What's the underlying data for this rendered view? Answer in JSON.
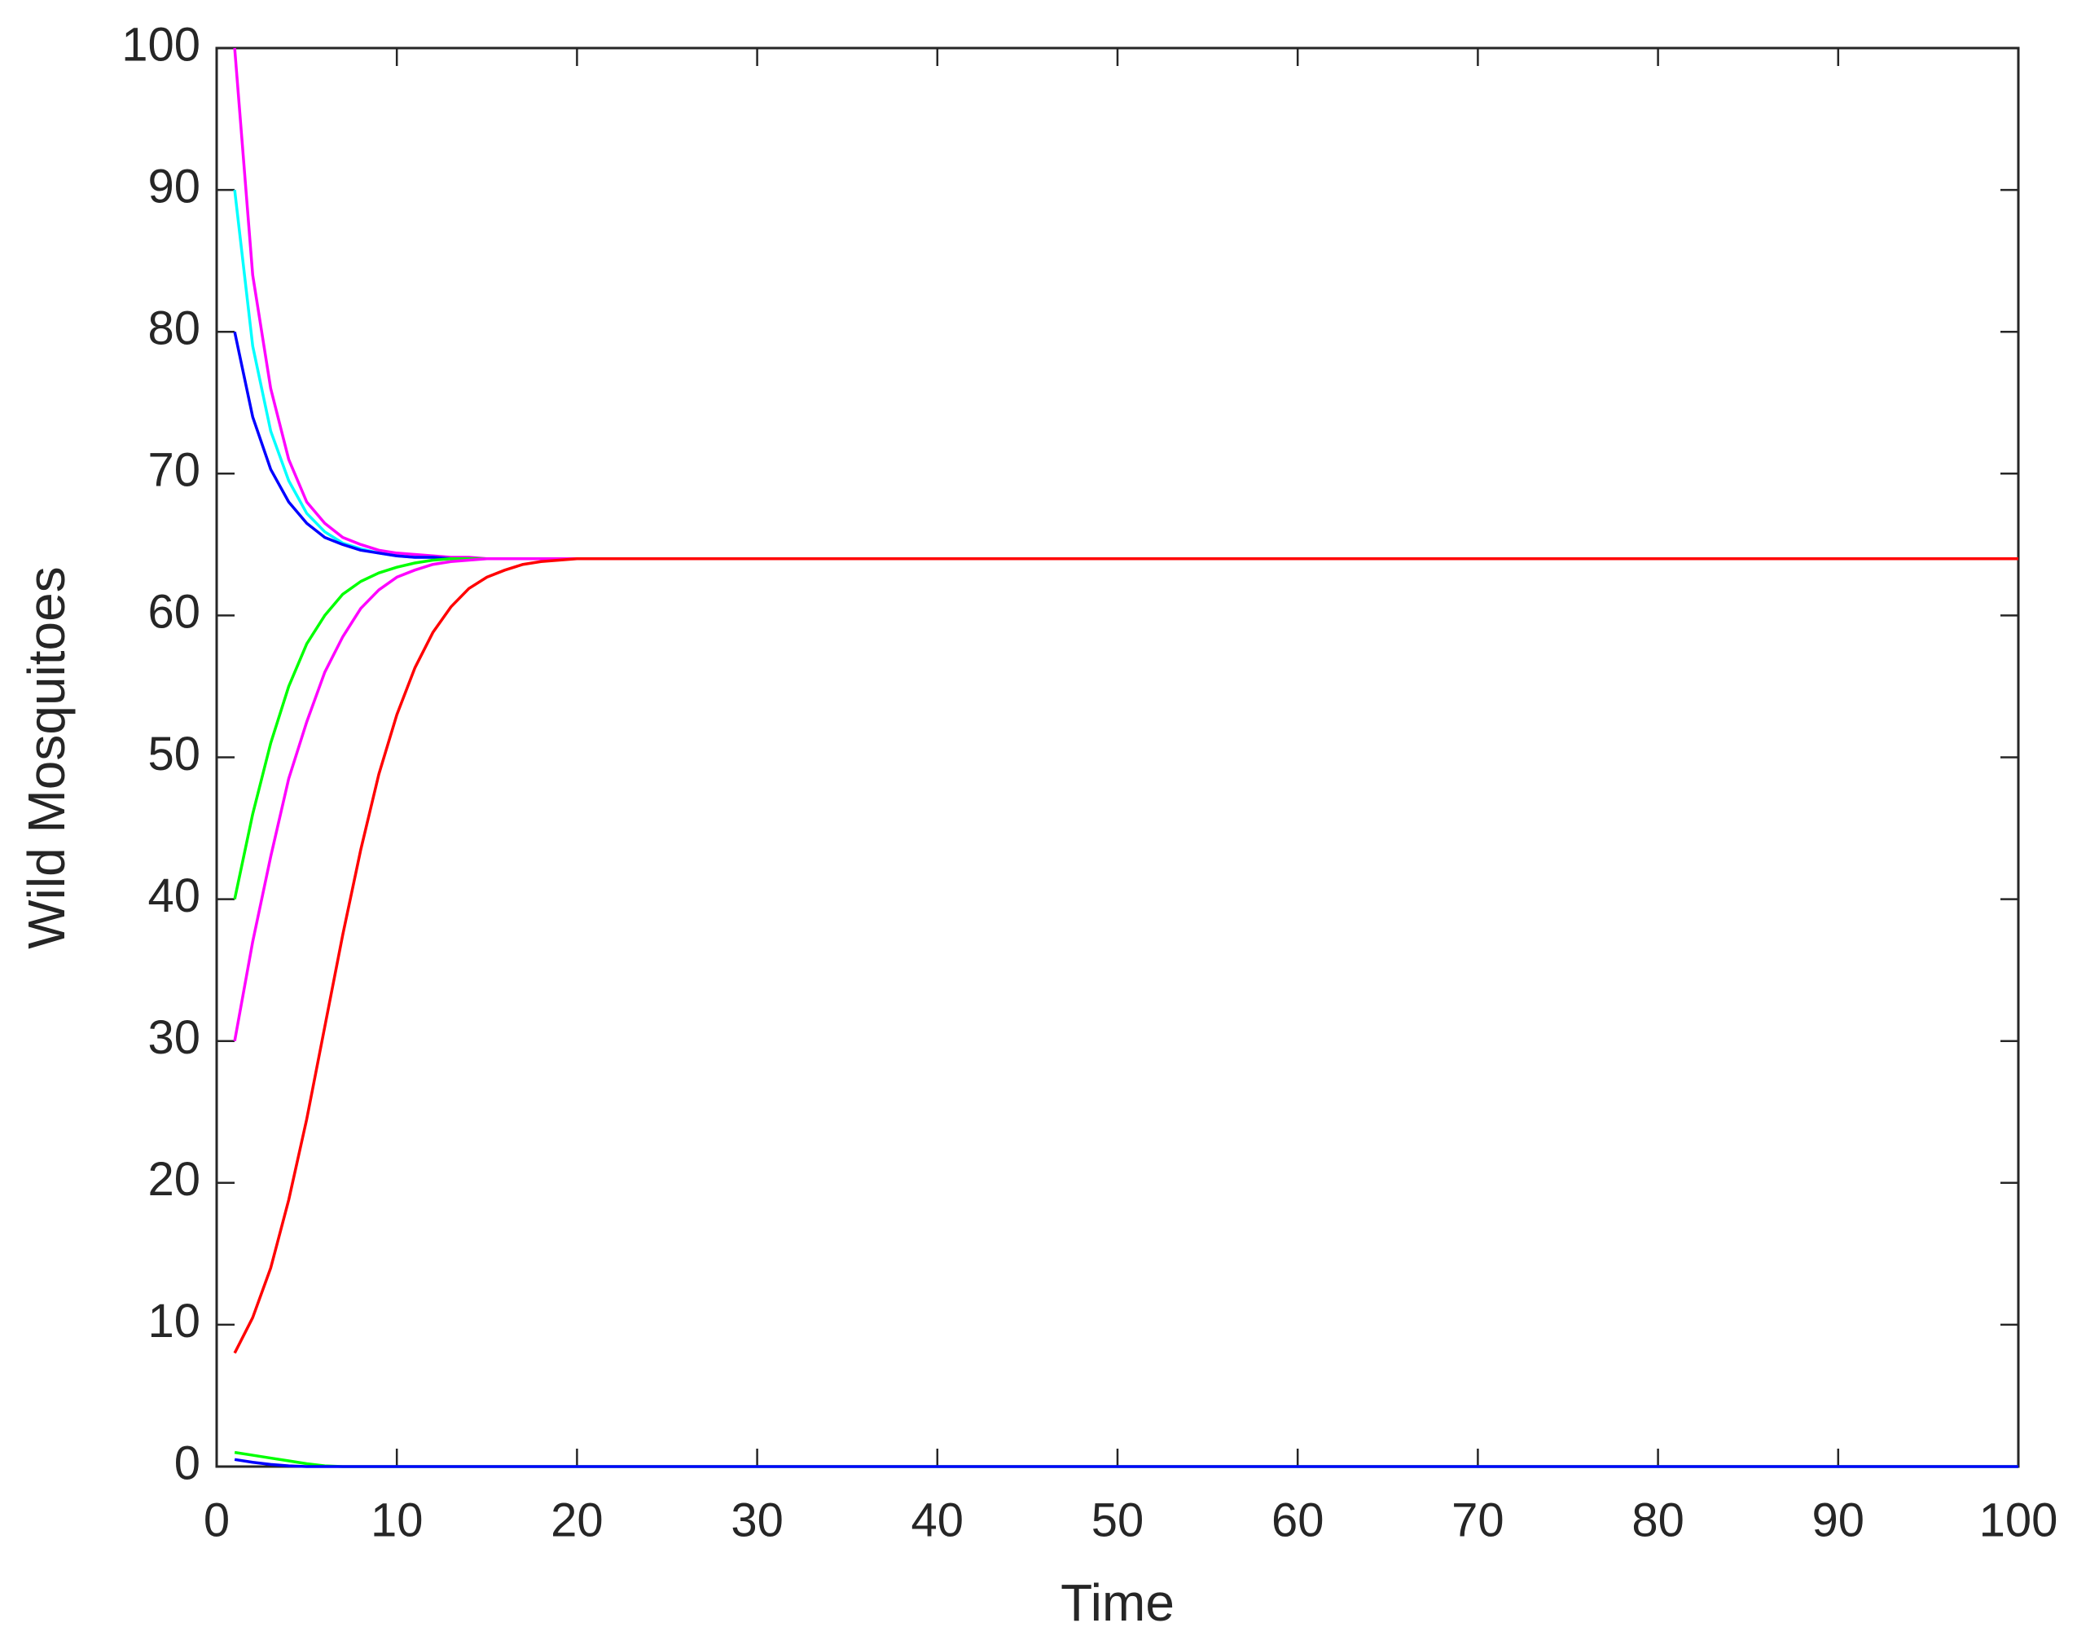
{
  "chart_data": {
    "type": "line",
    "x_label": "Time",
    "y_label": "Wild Mosquitoes",
    "x": [
      1,
      2,
      3,
      4,
      5,
      6,
      7,
      8,
      9,
      10,
      11,
      12,
      13,
      14,
      15,
      16,
      17,
      18,
      19,
      20,
      25,
      100
    ],
    "series": [
      {
        "color": "#ff00ff",
        "values": [
          100,
          84,
          76,
          71,
          68,
          66.5,
          65.5,
          65,
          64.6,
          64.4,
          64.3,
          64.2,
          64.1,
          64.1,
          64,
          64,
          64,
          64,
          64,
          64,
          64,
          64
        ]
      },
      {
        "color": "#00ffff",
        "values": [
          90,
          79,
          73,
          69.5,
          67.2,
          65.9,
          65.1,
          64.7,
          64.4,
          64.2,
          64.1,
          64.1,
          64,
          64,
          64,
          64,
          64,
          64,
          64,
          64,
          64,
          64
        ]
      },
      {
        "color": "#0000ff",
        "values": [
          80,
          74,
          70.3,
          68,
          66.5,
          65.5,
          65,
          64.6,
          64.4,
          64.2,
          64.1,
          64.1,
          64,
          64,
          64,
          64,
          64,
          64,
          64,
          64,
          64,
          64
        ]
      },
      {
        "color": "#00ff00",
        "values": [
          40,
          46,
          51,
          55,
          58,
          60,
          61.5,
          62.4,
          63,
          63.4,
          63.7,
          63.9,
          64,
          64,
          64,
          64,
          64,
          64,
          64,
          64,
          64,
          64
        ]
      },
      {
        "color": "#ff00ff",
        "values": [
          30,
          37,
          43,
          48.5,
          52.5,
          56,
          58.5,
          60.5,
          61.8,
          62.7,
          63.2,
          63.6,
          63.8,
          63.9,
          64,
          64,
          64,
          64,
          64,
          64,
          64,
          64
        ]
      },
      {
        "color": "#ff0000",
        "values": [
          8,
          10.5,
          14,
          18.8,
          24.5,
          31,
          37.5,
          43.5,
          48.8,
          53,
          56.3,
          58.8,
          60.6,
          61.9,
          62.7,
          63.2,
          63.6,
          63.8,
          63.9,
          64,
          64,
          64
        ]
      },
      {
        "color": "#00ff00",
        "values": [
          1,
          0.8,
          0.6,
          0.4,
          0.2,
          0.05,
          0,
          0,
          0,
          0,
          0,
          0,
          0,
          0,
          0,
          0,
          0,
          0,
          0,
          0,
          0,
          0
        ]
      },
      {
        "color": "#0000ff",
        "values": [
          0.5,
          0.3,
          0.15,
          0.05,
          0,
          0,
          0,
          0,
          0,
          0,
          0,
          0,
          0,
          0,
          0,
          0,
          0,
          0,
          0,
          0,
          0,
          0
        ]
      }
    ],
    "xlim": [
      0,
      100
    ],
    "xticks": [
      0,
      10,
      20,
      30,
      40,
      50,
      60,
      70,
      80,
      90,
      100
    ],
    "ylim": [
      0,
      100
    ],
    "yticks": [
      0,
      10,
      20,
      30,
      40,
      50,
      60,
      70,
      80,
      90,
      100
    ]
  }
}
